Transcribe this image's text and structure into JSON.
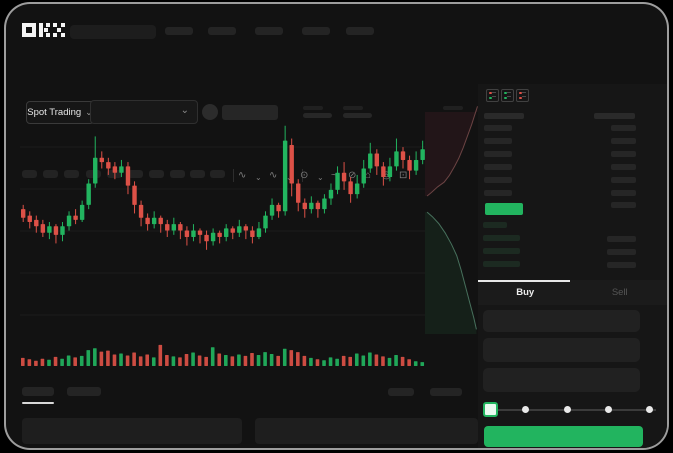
{
  "app": {
    "name": "OKX"
  },
  "colors": {
    "green": "#22b45f",
    "red": "#dd5147",
    "depth_ask_fill": "#221518",
    "depth_ask_line": "#6b4343",
    "depth_bid_fill": "#152019",
    "depth_bid_line": "#47705c"
  },
  "market_bar": {
    "market_selector_label": "Spot Trading",
    "chevron": "⌄"
  },
  "chart_toolbar": {
    "icons": [
      {
        "name": "candle-style-icon",
        "glyph": "∿"
      },
      {
        "name": "chevron-down-icon",
        "glyph": "⌄"
      },
      {
        "name": "compare-icon",
        "glyph": "∿"
      },
      {
        "name": "chevron-down-icon",
        "glyph": "⌄"
      },
      {
        "name": "indicator-icon",
        "glyph": "⊙"
      },
      {
        "name": "chevron-down-icon",
        "glyph": "⌄"
      },
      {
        "name": "trendline-icon",
        "glyph": "~"
      },
      {
        "name": "drawing-tools-icon",
        "glyph": "⊘"
      },
      {
        "name": "camera-icon",
        "glyph": "⌂"
      },
      {
        "name": "settings-icon",
        "glyph": "◎"
      },
      {
        "name": "fullscreen-icon",
        "glyph": "⊡"
      }
    ]
  },
  "skeletons": {
    "nav_item_count": 5,
    "toolbar_block_count": 10,
    "stat_group_count": 5,
    "bottom_tab_count": 2
  },
  "orderbook": {
    "view_modes": [
      {
        "name": "book-combined-icon",
        "top": "red",
        "bottom": "green"
      },
      {
        "name": "book-bids-icon",
        "top": "green",
        "bottom": "green"
      },
      {
        "name": "book-asks-icon",
        "top": "red",
        "bottom": "red"
      }
    ],
    "ask_row_count": 6,
    "bid_row_count": 4,
    "detail_row_count": 7,
    "extra_row_count": 3
  },
  "trade_panel": {
    "tabs": [
      "Buy",
      "Sell"
    ],
    "active_tab": "Buy",
    "input_row_count": 3,
    "slider": {
      "steps": 5,
      "active_step": 0
    }
  },
  "chart_data": {
    "type": "candlestick",
    "title": "",
    "x_axis_labels_visible": false,
    "y_axis_labels_visible": false,
    "grid": "horizontal-faint",
    "value_scale": [
      0,
      100
    ],
    "candles_ochl_note": "each entry = [open, close, low, high] on 0-100 relative price scale",
    "candles": [
      [
        56,
        52,
        50,
        58
      ],
      [
        53,
        50,
        47,
        55
      ],
      [
        51,
        48,
        45,
        53
      ],
      [
        49,
        45,
        43,
        51
      ],
      [
        45,
        48,
        42,
        50
      ],
      [
        48,
        44,
        40,
        49
      ],
      [
        44,
        48,
        41,
        50
      ],
      [
        48,
        53,
        46,
        55
      ],
      [
        53,
        51,
        49,
        56
      ],
      [
        51,
        58,
        50,
        60
      ],
      [
        58,
        68,
        56,
        70
      ],
      [
        68,
        80,
        66,
        90
      ],
      [
        80,
        78,
        75,
        83
      ],
      [
        78,
        75,
        72,
        80
      ],
      [
        76,
        73,
        70,
        78
      ],
      [
        73,
        76,
        71,
        79
      ],
      [
        76,
        67,
        63,
        78
      ],
      [
        67,
        58,
        54,
        69
      ],
      [
        58,
        52,
        48,
        60
      ],
      [
        52,
        49,
        46,
        54
      ],
      [
        49,
        52,
        47,
        55
      ],
      [
        52,
        49,
        45,
        53
      ],
      [
        49,
        46,
        43,
        51
      ],
      [
        46,
        49,
        44,
        52
      ],
      [
        49,
        46,
        42,
        50
      ],
      [
        46,
        43,
        39,
        48
      ],
      [
        43,
        46,
        41,
        49
      ],
      [
        46,
        44,
        40,
        47
      ],
      [
        44,
        41,
        37,
        46
      ],
      [
        41,
        45,
        39,
        47
      ],
      [
        45,
        43,
        40,
        46
      ],
      [
        43,
        47,
        41,
        49
      ],
      [
        47,
        45,
        42,
        48
      ],
      [
        45,
        48,
        43,
        51
      ],
      [
        48,
        46,
        42,
        49
      ],
      [
        46,
        43,
        40,
        48
      ],
      [
        43,
        47,
        42,
        50
      ],
      [
        47,
        53,
        45,
        55
      ],
      [
        53,
        58,
        51,
        61
      ],
      [
        58,
        55,
        52,
        59
      ],
      [
        55,
        88,
        53,
        95
      ],
      [
        86,
        68,
        62,
        89
      ],
      [
        68,
        59,
        55,
        70
      ],
      [
        59,
        56,
        52,
        61
      ],
      [
        56,
        59,
        54,
        62
      ],
      [
        59,
        56,
        52,
        60
      ],
      [
        56,
        61,
        54,
        63
      ],
      [
        61,
        65,
        58,
        68
      ],
      [
        65,
        73,
        63,
        76
      ],
      [
        73,
        69,
        65,
        78
      ],
      [
        69,
        63,
        59,
        71
      ],
      [
        63,
        68,
        61,
        72
      ],
      [
        68,
        75,
        66,
        79
      ],
      [
        75,
        82,
        73,
        87
      ],
      [
        82,
        76,
        72,
        84
      ],
      [
        76,
        71,
        67,
        78
      ],
      [
        71,
        76,
        69,
        80
      ],
      [
        76,
        83,
        74,
        89
      ],
      [
        83,
        79,
        75,
        85
      ],
      [
        79,
        74,
        70,
        81
      ],
      [
        74,
        79,
        72,
        83
      ],
      [
        79,
        84,
        77,
        88
      ]
    ],
    "volume": [
      34,
      28,
      22,
      30,
      26,
      38,
      30,
      44,
      36,
      42,
      66,
      74,
      60,
      64,
      48,
      52,
      44,
      56,
      40,
      48,
      36,
      88,
      46,
      40,
      36,
      50,
      56,
      44,
      38,
      78,
      52,
      46,
      40,
      48,
      42,
      54,
      46,
      58,
      50,
      42,
      72,
      66,
      58,
      42,
      34,
      28,
      24,
      36,
      30,
      42,
      38,
      52,
      44,
      56,
      48,
      40,
      34,
      46,
      38,
      28,
      20,
      16
    ],
    "depth": {
      "orientation": "vertical",
      "asks_curve": [
        [
          0.04,
          0.4
        ],
        [
          0.12,
          0.385
        ],
        [
          0.24,
          0.36
        ],
        [
          0.36,
          0.34
        ],
        [
          0.46,
          0.31
        ],
        [
          0.56,
          0.27
        ],
        [
          0.64,
          0.235
        ],
        [
          0.72,
          0.19
        ],
        [
          0.8,
          0.14
        ],
        [
          0.88,
          0.09
        ],
        [
          0.95,
          0.04
        ],
        [
          0.99,
          0.01
        ]
      ],
      "bids_curve": [
        [
          0.04,
          0.47
        ],
        [
          0.14,
          0.49
        ],
        [
          0.26,
          0.52
        ],
        [
          0.38,
          0.56
        ],
        [
          0.5,
          0.61
        ],
        [
          0.6,
          0.66
        ],
        [
          0.68,
          0.72
        ],
        [
          0.76,
          0.79
        ],
        [
          0.84,
          0.86
        ],
        [
          0.92,
          0.93
        ],
        [
          0.97,
          0.98
        ]
      ]
    }
  }
}
